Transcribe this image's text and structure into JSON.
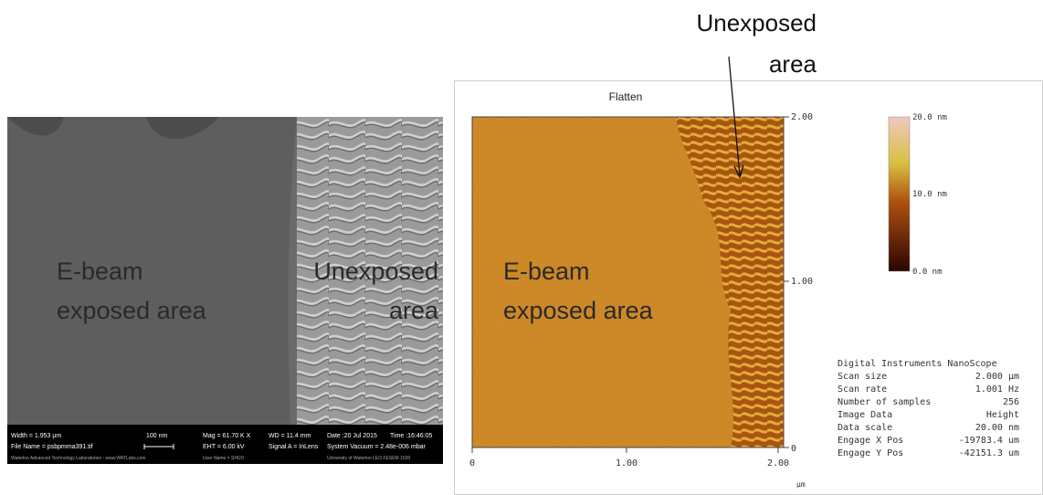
{
  "sem": {
    "labels": {
      "exposed": [
        "E-beam",
        "exposed area"
      ],
      "unexposed": [
        "Unexposed",
        "area"
      ]
    },
    "info_bar": {
      "width": "Width = 1.953 µm",
      "scale": "100 nm",
      "mag": "Mag = 61.70 K X",
      "wd": "WD = 11.4 mm",
      "date": "Date :20 Jul 2015",
      "time": "Time :16:46:05",
      "file": "File Name = psbpmma391.tif",
      "eht": "EHT = 6.00 kV",
      "signal": "Signal A = InLens",
      "vacuum": "System Vacuum = 2.48e-006 mbar",
      "lab": "Waterloo Advanced Technology Laboratories - www.WATLabs.com",
      "user": "User Name = SHUO",
      "uni": "University of Waterloo LEO FESEM 1530"
    }
  },
  "afm": {
    "title": "Flatten",
    "labels": {
      "exposed": [
        "E-beam",
        "exposed area"
      ],
      "unexposed": [
        "Unexposed",
        "area"
      ]
    },
    "y_ticks": [
      "2.00",
      "1.00",
      "0"
    ],
    "x_ticks": [
      "0",
      "1.00",
      "2.00"
    ],
    "x_unit": "µm",
    "colorbar": [
      "20.0 nm",
      "10.0 nm",
      "0.0 nm"
    ],
    "info": {
      "header": "Digital Instruments NanoScope",
      "rows": [
        [
          "Scan size",
          "2.000 µm"
        ],
        [
          "Scan rate",
          "1.001 Hz"
        ],
        [
          "Number of samples",
          "256"
        ],
        [
          "Image Data",
          "Height"
        ],
        [
          "Data scale",
          "20.00 nm"
        ],
        [
          "Engage X Pos",
          "-19783.4 um"
        ],
        [
          "Engage Y Pos",
          "-42151.3 um"
        ]
      ]
    }
  }
}
